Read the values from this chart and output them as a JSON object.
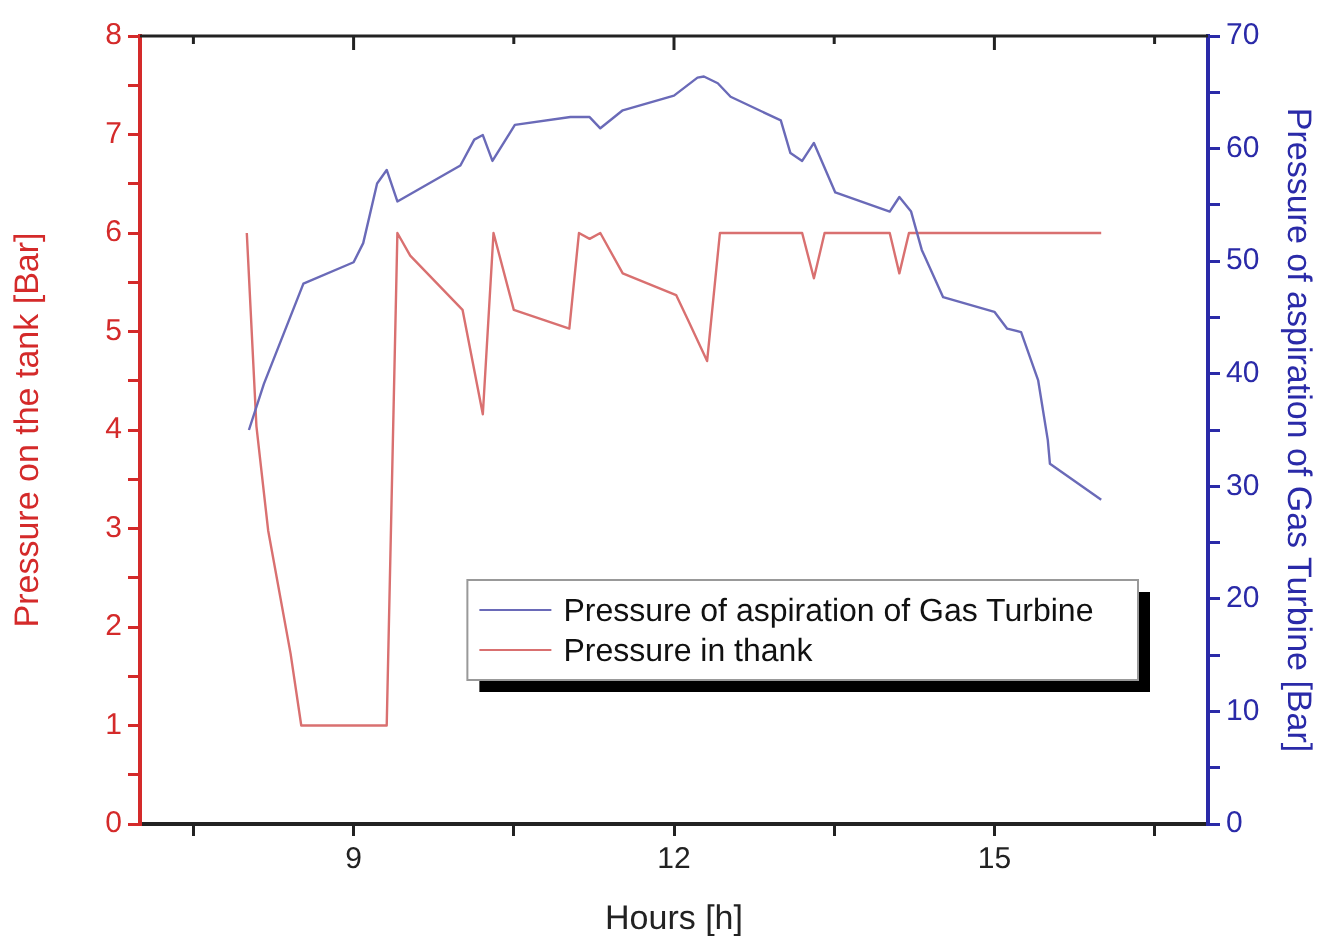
{
  "chart_data": {
    "type": "line",
    "xlabel": "Hours [h]",
    "ylabel": "Pressure on the tank [Bar]",
    "y2label": "Pressure of aspiration of Gas Turbine [Bar]",
    "xlim": [
      7,
      17
    ],
    "xticks": [
      {
        "value": 7.5,
        "label": null
      },
      9,
      {
        "value": 10.5,
        "label": null
      },
      12,
      {
        "value": 13.5,
        "label": null
      },
      15,
      {
        "value": 16.5,
        "label": null
      }
    ],
    "ylim": [
      0,
      8
    ],
    "yticks": [
      0,
      {
        "value": 0.5,
        "label": null
      },
      1,
      {
        "value": 1.5,
        "label": null
      },
      2,
      {
        "value": 2.5,
        "label": null
      },
      3,
      {
        "value": 3.5,
        "label": null
      },
      4,
      {
        "value": 4.5,
        "label": null
      },
      5,
      {
        "value": 5.5,
        "label": null
      },
      6,
      {
        "value": 6.5,
        "label": null
      },
      7,
      {
        "value": 7.5,
        "label": null
      },
      8
    ],
    "y2lim": [
      0,
      70
    ],
    "y2ticks": [
      0,
      {
        "value": 5,
        "label": null
      },
      10,
      {
        "value": 15,
        "label": null
      },
      20,
      {
        "value": 25,
        "label": null
      },
      30,
      {
        "value": 35,
        "label": null
      },
      40,
      {
        "value": 45,
        "label": null
      },
      50,
      {
        "value": 55,
        "label": null
      },
      60,
      {
        "value": 65,
        "label": null
      },
      70
    ],
    "grid": false,
    "legend": "bottom right",
    "marker": "none",
    "line_style": "solid",
    "series": [
      {
        "name": "Pressure of aspiration of Gas Turbine",
        "color": "#6a6ab8",
        "axis": "y2",
        "x": [
          8.02,
          8.16,
          8.53,
          9.0,
          9.09,
          9.22,
          9.31,
          9.41,
          10.0,
          10.13,
          10.21,
          10.3,
          10.51,
          11.03,
          11.21,
          11.31,
          11.52,
          12.0,
          12.22,
          12.28,
          12.41,
          12.53,
          13.0,
          13.09,
          13.2,
          13.31,
          13.51,
          14.02,
          14.11,
          14.22,
          14.32,
          14.52,
          15.0,
          15.12,
          15.25,
          15.41,
          15.5,
          15.52,
          16.0
        ],
        "values": [
          35.0,
          39.1,
          48.0,
          49.9,
          51.6,
          56.9,
          58.1,
          55.3,
          58.5,
          60.8,
          61.2,
          58.9,
          62.1,
          62.8,
          62.8,
          61.8,
          63.4,
          64.7,
          66.3,
          66.4,
          65.8,
          64.6,
          62.5,
          59.6,
          58.9,
          60.5,
          56.1,
          54.4,
          55.7,
          54.4,
          51.0,
          46.8,
          45.5,
          44.0,
          43.7,
          39.4,
          34.1,
          32.0,
          28.8
        ]
      },
      {
        "name": "Pressure in thank",
        "color": "#d97070",
        "axis": "y",
        "x": [
          8.0,
          8.09,
          8.2,
          8.41,
          8.51,
          9.31,
          9.41,
          9.53,
          10.02,
          10.21,
          10.31,
          10.5,
          11.02,
          11.11,
          11.21,
          11.31,
          11.52,
          12.02,
          12.13,
          12.31,
          12.43,
          13.2,
          13.31,
          13.41,
          14.02,
          14.11,
          14.2,
          16.0
        ],
        "values": [
          6.0,
          4.04,
          2.98,
          1.73,
          1.0,
          1.0,
          6.0,
          5.77,
          5.22,
          4.16,
          6.0,
          5.22,
          5.03,
          6.0,
          5.94,
          6.0,
          5.59,
          5.37,
          5.12,
          4.7,
          6.0,
          6.0,
          5.54,
          6.0,
          6.0,
          5.59,
          6.0,
          6.0
        ]
      }
    ]
  }
}
